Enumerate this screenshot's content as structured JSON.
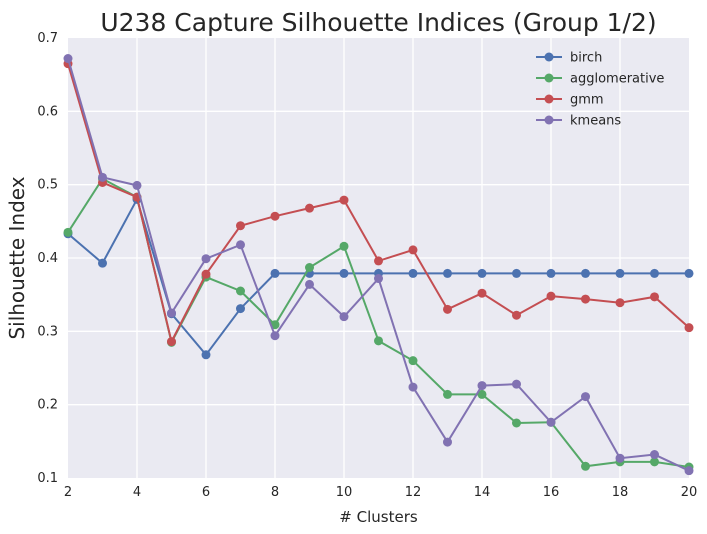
{
  "chart_data": {
    "type": "line",
    "title": "U238 Capture Silhouette Indices (Group 1/2)",
    "xlabel": "# Clusters",
    "ylabel": "Silhouette Index",
    "xlim": [
      2,
      20
    ],
    "ylim": [
      0.1,
      0.7
    ],
    "xticks": [
      2,
      4,
      6,
      8,
      10,
      12,
      14,
      16,
      18,
      20
    ],
    "yticks": [
      0.1,
      0.2,
      0.3,
      0.4,
      0.5,
      0.6,
      0.7
    ],
    "grid": true,
    "legend_position": "top-right",
    "x": [
      2,
      3,
      4,
      5,
      6,
      7,
      8,
      9,
      10,
      11,
      12,
      13,
      14,
      15,
      16,
      17,
      18,
      19,
      20
    ],
    "series": [
      {
        "name": "birch",
        "color": "#4c72b0",
        "values": [
          0.433,
          0.393,
          0.48,
          0.324,
          0.268,
          0.331,
          0.379,
          0.379,
          0.379,
          0.379,
          0.379,
          0.379,
          0.379,
          0.379,
          0.379,
          0.379,
          0.379,
          0.379,
          0.379
        ]
      },
      {
        "name": "agglomerative",
        "color": "#55a868",
        "values": [
          0.435,
          0.508,
          0.483,
          0.285,
          0.374,
          0.355,
          0.309,
          0.387,
          0.416,
          0.287,
          0.26,
          0.214,
          0.214,
          0.175,
          0.176,
          0.116,
          0.122,
          0.122,
          0.115
        ]
      },
      {
        "name": "gmm",
        "color": "#c44e52",
        "values": [
          0.665,
          0.503,
          0.483,
          0.286,
          0.378,
          0.444,
          0.457,
          0.468,
          0.479,
          0.396,
          0.411,
          0.33,
          0.352,
          0.322,
          0.348,
          0.344,
          0.339,
          0.347,
          0.305
        ]
      },
      {
        "name": "kmeans",
        "color": "#8172b2",
        "values": [
          0.672,
          0.51,
          0.499,
          0.325,
          0.399,
          0.418,
          0.294,
          0.364,
          0.32,
          0.372,
          0.224,
          0.149,
          0.226,
          0.228,
          0.176,
          0.211,
          0.127,
          0.132,
          0.11
        ]
      }
    ]
  },
  "style": {
    "plot_background": "#eaeaf2",
    "grid_color": "#ffffff",
    "text_color": "#262626"
  }
}
